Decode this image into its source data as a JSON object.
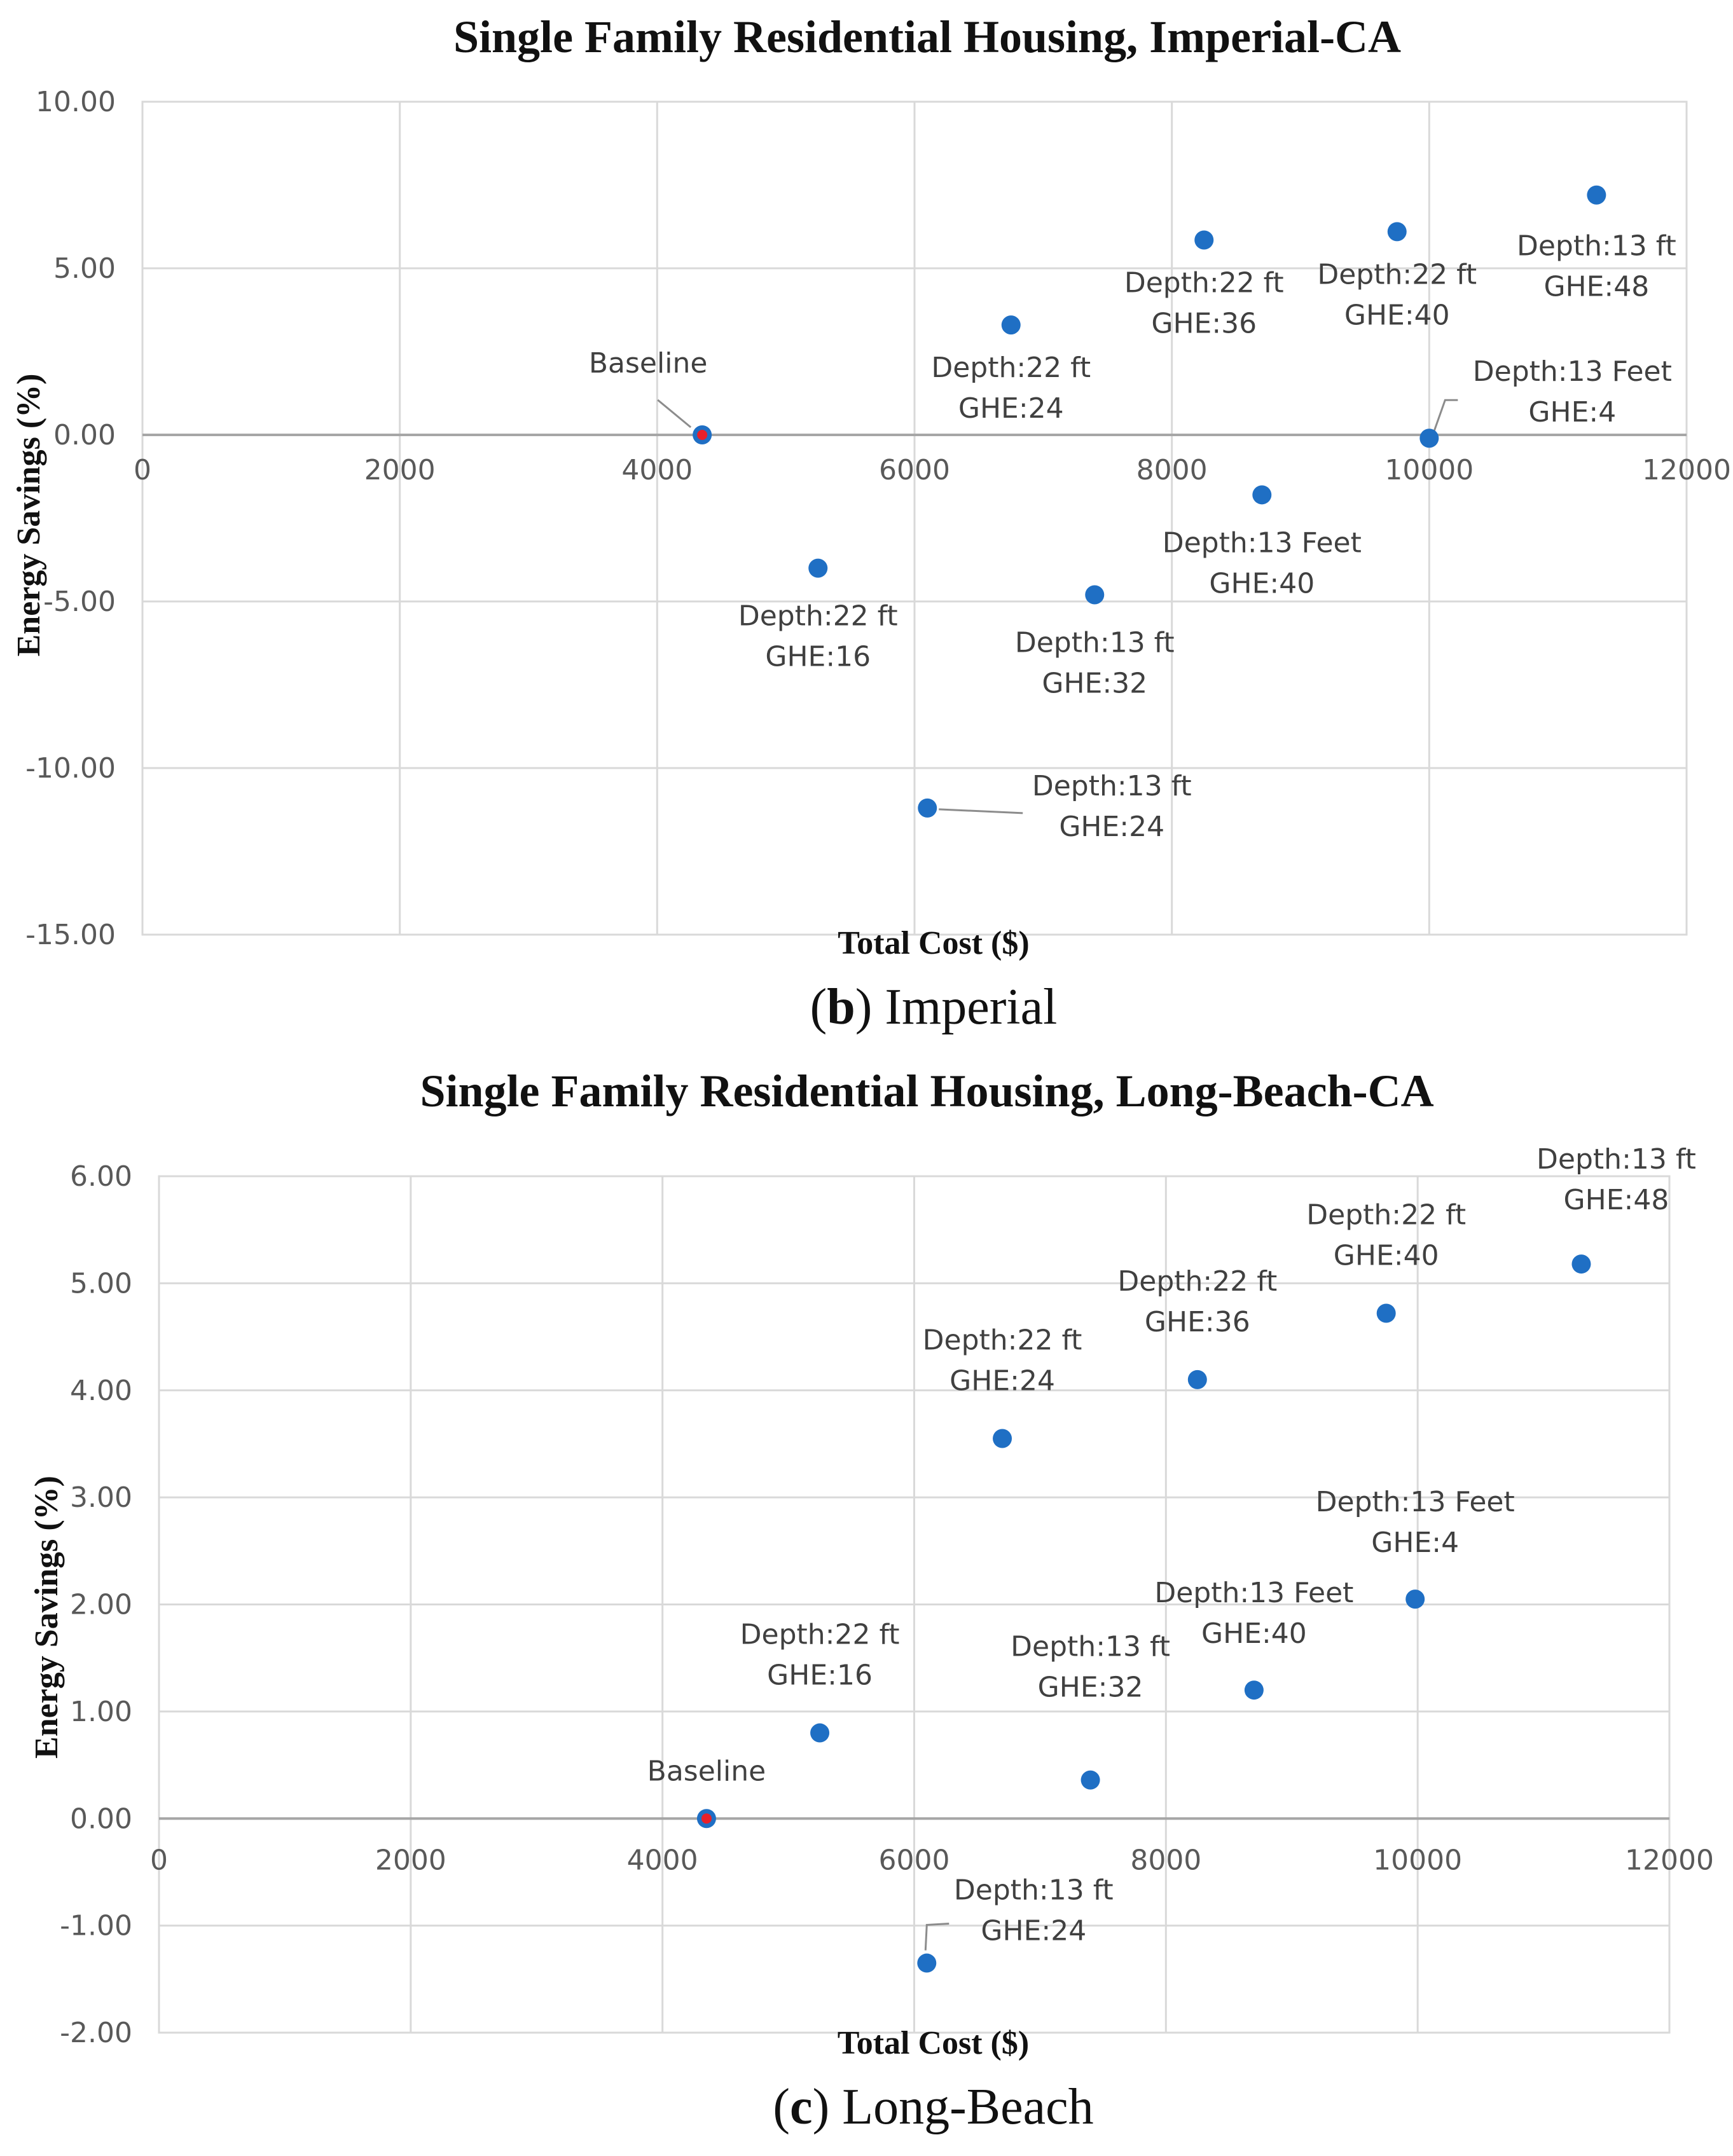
{
  "chart_data": [
    {
      "type": "scatter",
      "title": "Single Family Residential Housing, Imperial-CA",
      "xlabel": "Total Cost ($)",
      "ylabel": "Energy Savings (%)",
      "xlim": [
        0,
        12000
      ],
      "ylim": [
        -15,
        10
      ],
      "x_ticks": [
        "0",
        "2000",
        "4000",
        "6000",
        "8000",
        "10000",
        "12000"
      ],
      "y_ticks": [
        "10.00",
        "5.00",
        "0.00",
        "-5.00",
        "-10.00",
        "-15.00"
      ],
      "grid": true,
      "caption": {
        "letter": "b",
        "text": "Imperial"
      },
      "points": [
        {
          "x": 4350,
          "y": 0.0,
          "label": [
            "Baseline"
          ],
          "baseline": true
        },
        {
          "x": 5250,
          "y": -4.0,
          "label": [
            "Depth:22 ft",
            "GHE:16"
          ]
        },
        {
          "x": 6750,
          "y": 3.3,
          "label": [
            "Depth:22 ft",
            "GHE:24"
          ]
        },
        {
          "x": 8250,
          "y": 5.85,
          "label": [
            "Depth:22 ft",
            "GHE:36"
          ]
        },
        {
          "x": 9750,
          "y": 6.1,
          "label": [
            "Depth:22 ft",
            "GHE:40"
          ]
        },
        {
          "x": 11300,
          "y": 7.2,
          "label": [
            "Depth:13 ft",
            "GHE:48"
          ]
        },
        {
          "x": 10000,
          "y": -0.1,
          "label": [
            "Depth:13 Feet",
            "GHE:4"
          ]
        },
        {
          "x": 8700,
          "y": -1.8,
          "label": [
            "Depth:13 Feet",
            "GHE:40"
          ]
        },
        {
          "x": 7400,
          "y": -4.8,
          "label": [
            "Depth:13 ft",
            "GHE:32"
          ]
        },
        {
          "x": 6100,
          "y": -11.2,
          "label": [
            "Depth:13 ft",
            "GHE:24"
          ]
        }
      ]
    },
    {
      "type": "scatter",
      "title": "Single Family Residential Housing, Long-Beach-CA",
      "xlabel": "Total Cost ($)",
      "ylabel": "Energy Savings (%)",
      "xlim": [
        0,
        12000
      ],
      "ylim": [
        -2,
        6
      ],
      "x_ticks": [
        "0",
        "2000",
        "4000",
        "6000",
        "8000",
        "10000",
        "12000"
      ],
      "y_ticks": [
        "6.00",
        "5.00",
        "4.00",
        "3.00",
        "2.00",
        "1.00",
        "0.00",
        "-1.00",
        "-2.00"
      ],
      "grid": true,
      "caption": {
        "letter": "c",
        "text": "Long-Beach"
      },
      "points": [
        {
          "x": 4350,
          "y": 0.0,
          "label": [
            "Baseline"
          ],
          "baseline": true
        },
        {
          "x": 5250,
          "y": 0.8,
          "label": [
            "Depth:22 ft",
            "GHE:16"
          ]
        },
        {
          "x": 6700,
          "y": 3.55,
          "label": [
            "Depth:22 ft",
            "GHE:24"
          ]
        },
        {
          "x": 8250,
          "y": 4.1,
          "label": [
            "Depth:22 ft",
            "GHE:36"
          ]
        },
        {
          "x": 9750,
          "y": 4.72,
          "label": [
            "Depth:22 ft",
            "GHE:40"
          ]
        },
        {
          "x": 11300,
          "y": 5.18,
          "label": [
            "Depth:13 ft",
            "GHE:48"
          ]
        },
        {
          "x": 9980,
          "y": 2.05,
          "label": [
            "Depth:13 Feet",
            "GHE:4"
          ]
        },
        {
          "x": 8700,
          "y": 1.2,
          "label": [
            "Depth:13 Feet",
            "GHE:40"
          ]
        },
        {
          "x": 7400,
          "y": 0.36,
          "label": [
            "Depth:13 ft",
            "GHE:32"
          ]
        },
        {
          "x": 6100,
          "y": -1.35,
          "label": [
            "Depth:13 ft",
            "GHE:24"
          ]
        }
      ]
    }
  ],
  "colors": {
    "marker": "#1f6fc4",
    "baseline_marker": "#e8202a",
    "grid": "#d9d9d9",
    "axis_zero": "#a6a6a6",
    "label": "#404040",
    "tick": "#595959"
  }
}
